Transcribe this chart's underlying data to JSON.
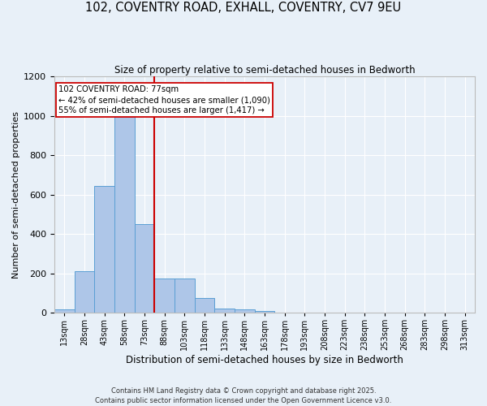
{
  "title_line1": "102, COVENTRY ROAD, EXHALL, COVENTRY, CV7 9EU",
  "title_line2": "Size of property relative to semi-detached houses in Bedworth",
  "xlabel": "Distribution of semi-detached houses by size in Bedworth",
  "ylabel": "Number of semi-detached properties",
  "footer": "Contains HM Land Registry data © Crown copyright and database right 2025.\nContains public sector information licensed under the Open Government Licence v3.0.",
  "bin_labels": [
    "13sqm",
    "28sqm",
    "43sqm",
    "58sqm",
    "73sqm",
    "88sqm",
    "103sqm",
    "118sqm",
    "133sqm",
    "148sqm",
    "163sqm",
    "178sqm",
    "193sqm",
    "208sqm",
    "223sqm",
    "238sqm",
    "253sqm",
    "268sqm",
    "283sqm",
    "298sqm",
    "313sqm"
  ],
  "bar_heights": [
    15,
    210,
    645,
    1000,
    450,
    175,
    175,
    75,
    20,
    15,
    10,
    0,
    0,
    0,
    0,
    0,
    0,
    0,
    0,
    0,
    0
  ],
  "bar_color": "#aec6e8",
  "bar_edge_color": "#5a9fd4",
  "background_color": "#e8f0f8",
  "grid_color": "#ffffff",
  "annotation_box_color": "#cc0000",
  "property_bin_index": 4,
  "annotation_text_line1": "102 COVENTRY ROAD: 77sqm",
  "annotation_text_line2": "← 42% of semi-detached houses are smaller (1,090)",
  "annotation_text_line3": "55% of semi-detached houses are larger (1,417) →",
  "ylim": [
    0,
    1200
  ],
  "yticks": [
    0,
    200,
    400,
    600,
    800,
    1000,
    1200
  ],
  "num_bins": 21,
  "bin_width": 1
}
